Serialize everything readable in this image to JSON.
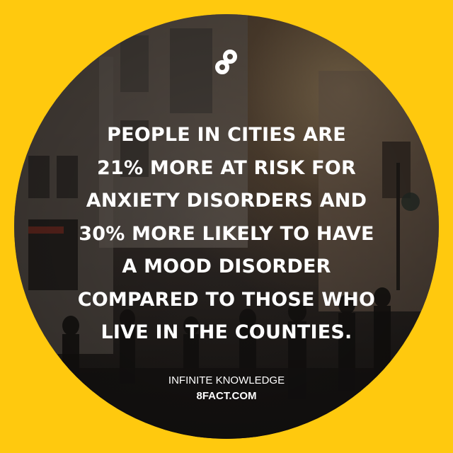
{
  "logo": {
    "icon": "infinity-8-logo-icon"
  },
  "headline": {
    "lines": [
      "PEOPLE IN CITIES ARE",
      "21% MORE AT RISK FOR",
      "ANXIETY DISORDERS AND",
      "30% MORE LIKELY TO HAVE",
      "A MOOD DISORDER",
      "COMPARED TO THOSE WHO",
      "LIVE IN THE COUNTIES."
    ]
  },
  "brand": {
    "name": "INFINITE KNOWLEDGE",
    "site": "8FACT.COM"
  },
  "colors": {
    "background": "#FFC90E",
    "text": "#FFFFFF"
  }
}
